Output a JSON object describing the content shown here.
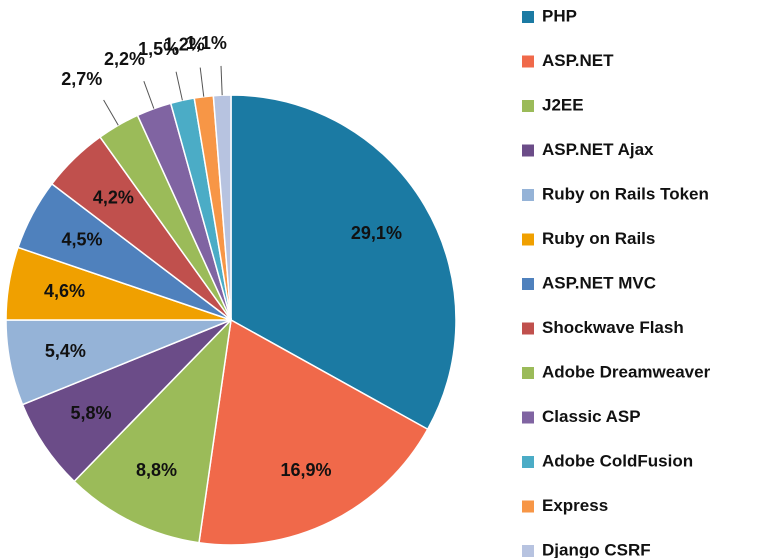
{
  "chart_data": {
    "type": "pie",
    "categories": [
      "PHP",
      "ASP.NET",
      "J2EE",
      "ASP.NET Ajax",
      "Ruby on Rails Token",
      "Ruby on Rails",
      "ASP.NET MVC",
      "Shockwave Flash",
      "Adobe Dreamweaver",
      "Classic ASP",
      "Adobe ColdFusion",
      "Express",
      "Django CSRF"
    ],
    "values": [
      29.1,
      16.9,
      8.8,
      5.8,
      5.4,
      4.6,
      4.5,
      4.2,
      2.7,
      2.2,
      1.5,
      1.2,
      1.1
    ],
    "value_labels": [
      "29,1%",
      "16,9%",
      "8,8%",
      "5,8%",
      "5,4%",
      "4,6%",
      "4,5%",
      "4,2%",
      "2,7%",
      "2,2%",
      "1,5%",
      "1,2%",
      "1,1%"
    ],
    "colors": [
      "#1b7aa3",
      "#f0694a",
      "#9bbb59",
      "#6b4c88",
      "#95b3d7",
      "#f0a000",
      "#4f81bd",
      "#c0504d",
      "#9bbb59",
      "#8064a2",
      "#4bacc6",
      "#f79646",
      "#b7c3e0"
    ],
    "legend": "right"
  }
}
